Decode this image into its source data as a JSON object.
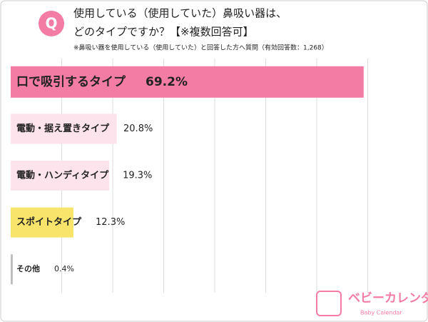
{
  "chart_data": {
    "type": "hbar",
    "badge": "Q",
    "title_lines": [
      "使用している（使用していた）鼻吸い器は、",
      "どのタイプですか？【※複数回答可】"
    ],
    "subtitle": "※鼻吸い器を使用している（使用していた）と回答した方へ質問（有効回答数：1,268）",
    "categories": [
      "口で吸引するタイプ",
      "電動・据え置きタイプ",
      "電動・ハンディタイプ",
      "スポイトタイプ",
      "その他"
    ],
    "values": [
      69.2,
      20.8,
      19.3,
      12.3,
      0.4
    ],
    "value_labels": [
      "69.2%",
      "20.8%",
      "19.3%",
      "12.3%",
      "0.4%"
    ],
    "colors": [
      "#f27ca3",
      "#fde3ec",
      "#fde3ec",
      "#f8e46a",
      "#bdbdbd"
    ],
    "xlim": [
      0,
      80
    ],
    "grid": true,
    "logo": {
      "name": "ベビーカレンダー",
      "sub": "Baby Calendar"
    }
  }
}
